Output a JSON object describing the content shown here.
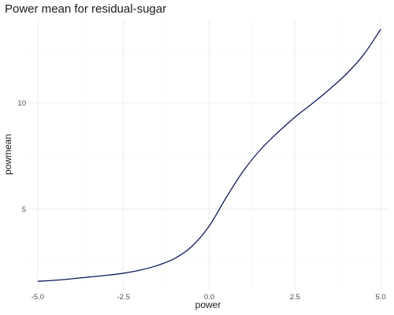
{
  "chart_data": {
    "type": "line",
    "title": "Power mean for residual-sugar",
    "xlabel": "power",
    "ylabel": "powmean",
    "xlim": [
      -5.25,
      5.25
    ],
    "ylim": [
      1.2,
      13.9
    ],
    "x_ticks": [
      -5.0,
      -2.5,
      0.0,
      2.5,
      5.0
    ],
    "x_tick_labels": [
      "-5.0",
      "-2.5",
      "0.0",
      "2.5",
      "5.0"
    ],
    "y_ticks": [
      5,
      10
    ],
    "y_tick_labels": [
      "5",
      "10"
    ],
    "grid": true,
    "legend": "none",
    "series": [
      {
        "color": "#0d1b5e",
        "x": [
          -5.0,
          -4.5,
          -4.0,
          -3.5,
          -3.0,
          -2.5,
          -2.0,
          -1.5,
          -1.0,
          -0.5,
          0.0,
          0.5,
          1.0,
          1.5,
          2.0,
          2.5,
          3.0,
          3.5,
          4.0,
          4.5,
          5.0
        ],
        "y": [
          1.6,
          1.65,
          1.72,
          1.8,
          1.88,
          1.98,
          2.13,
          2.35,
          2.68,
          3.25,
          4.2,
          5.55,
          6.8,
          7.8,
          8.6,
          9.32,
          9.95,
          10.62,
          11.35,
          12.25,
          13.45
        ]
      }
    ]
  }
}
